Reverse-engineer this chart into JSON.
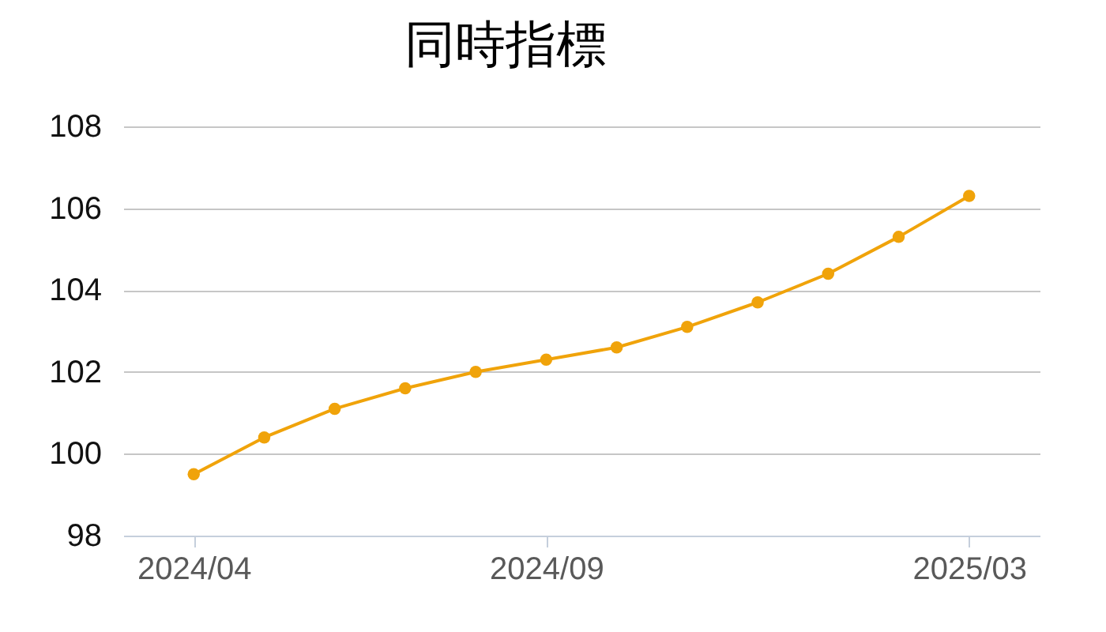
{
  "chart_data": {
    "type": "line",
    "title": "同時指標",
    "categories": [
      "2024/04",
      null,
      null,
      null,
      null,
      "2024/09",
      null,
      null,
      null,
      null,
      null,
      "2025/03"
    ],
    "values": [
      99.5,
      100.4,
      101.1,
      101.6,
      102.0,
      102.3,
      102.6,
      103.1,
      103.7,
      104.4,
      105.3,
      106.3
    ],
    "color": "#f0a30a",
    "marker": "circle",
    "ylim": [
      98,
      108
    ],
    "yticks": [
      98,
      100,
      102,
      104,
      106,
      108
    ],
    "grid": "y"
  }
}
